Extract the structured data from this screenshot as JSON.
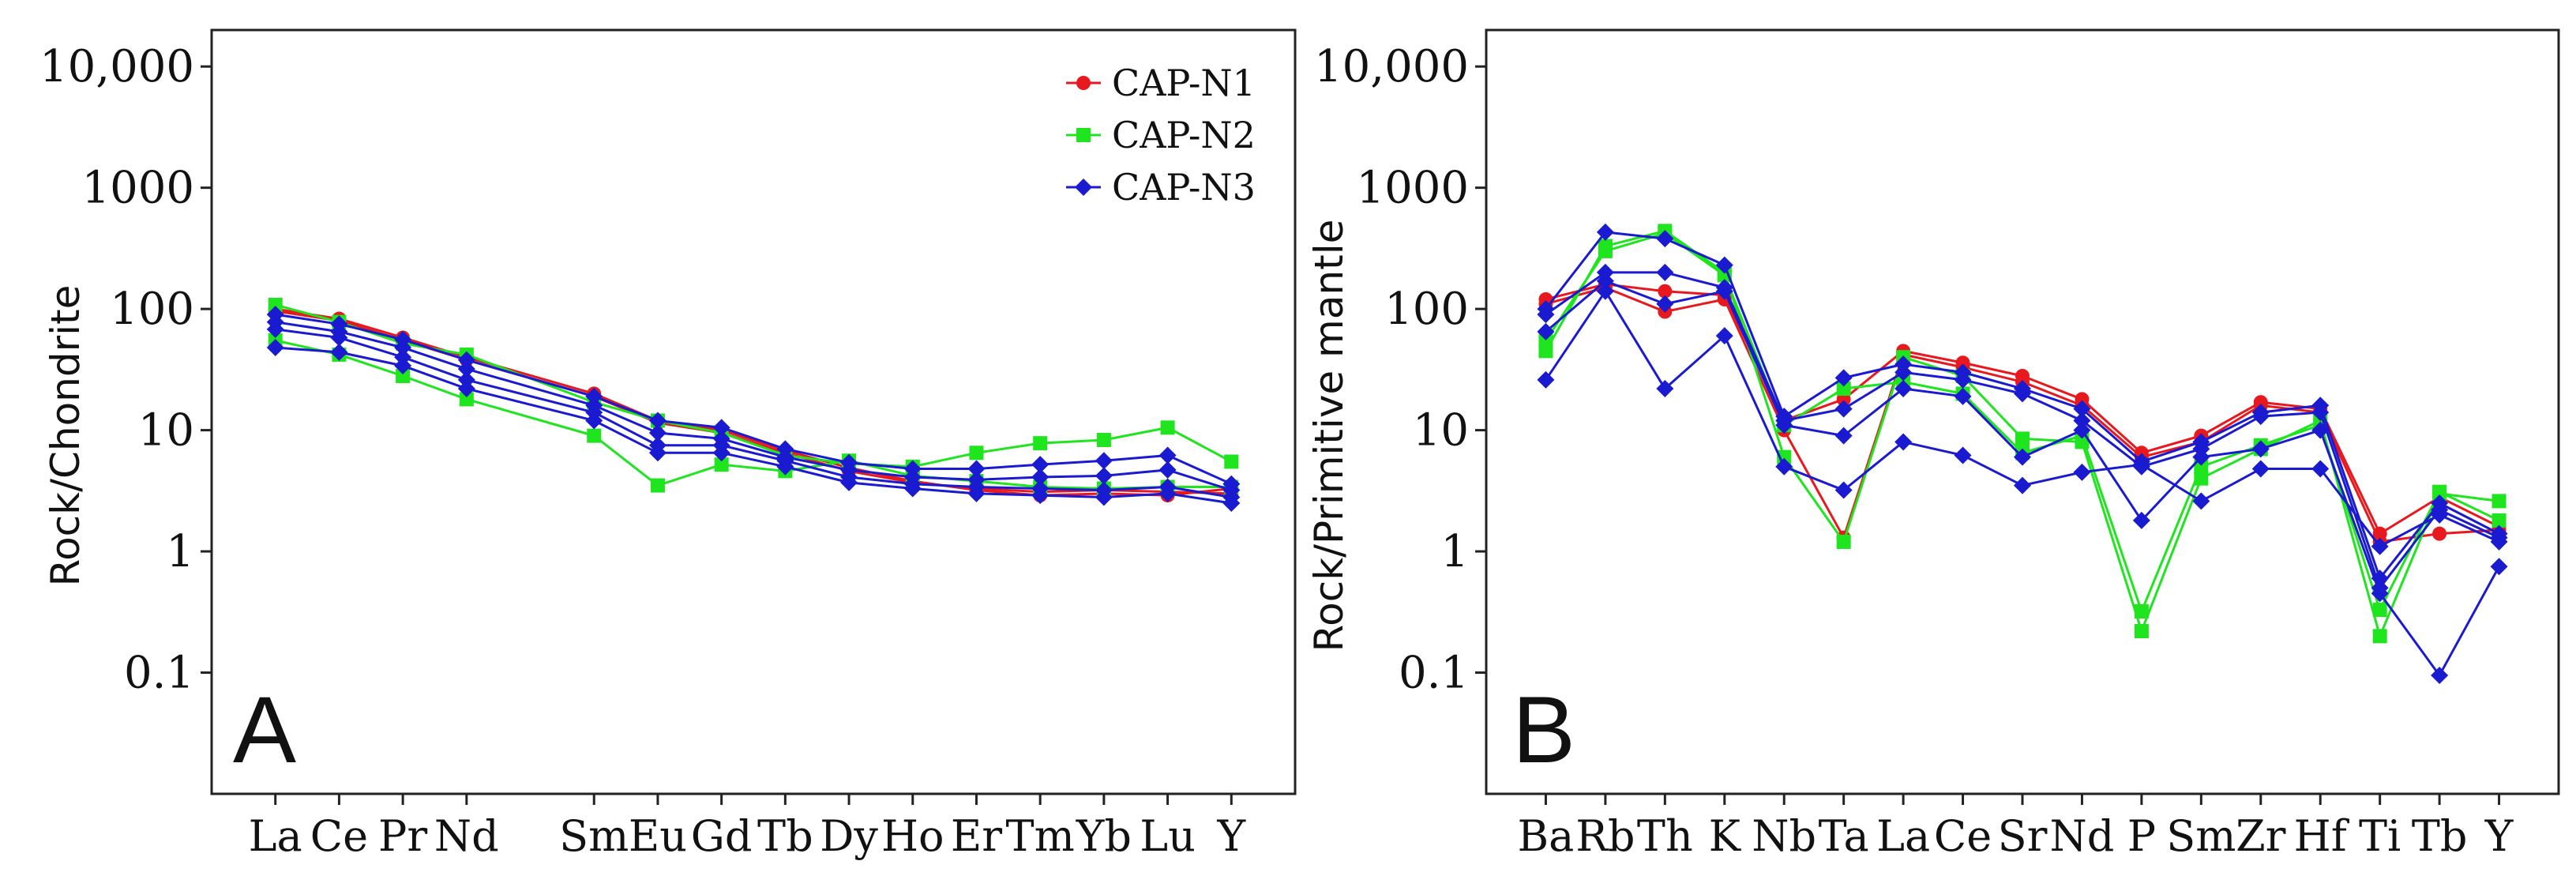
{
  "chart_data": [
    {
      "type": "line",
      "panel_label": "A",
      "ylabel": "Rock/Chondrite",
      "yscale": "log",
      "ylim": [
        0.01,
        20000
      ],
      "yticks": [
        {
          "value": 10000,
          "label": "10,000"
        },
        {
          "value": 1000,
          "label": "1000"
        },
        {
          "value": 100,
          "label": "100"
        },
        {
          "value": 10,
          "label": "10"
        },
        {
          "value": 1,
          "label": "1"
        },
        {
          "value": 0.1,
          "label": "0.1"
        }
      ],
      "categories": [
        "La",
        "Ce",
        "Pr",
        "Nd",
        "Sm",
        "Eu",
        "Gd",
        "Tb",
        "Dy",
        "Ho",
        "Er",
        "Tm",
        "Yb",
        "Lu",
        "Y"
      ],
      "category_positions": [
        1,
        2,
        3,
        4,
        6,
        7,
        8,
        9,
        10,
        11,
        12,
        13,
        14,
        15,
        16
      ],
      "x_range": [
        0,
        17
      ],
      "legend": [
        {
          "name": "CAP-N1",
          "color": "#e8191e",
          "marker": "circle"
        },
        {
          "name": "CAP-N2",
          "color": "#1ee51e",
          "marker": "square"
        },
        {
          "name": "CAP-N3",
          "color": "#1a1ad0",
          "marker": "diamond"
        }
      ],
      "series": [
        {
          "name": "CAP-N1",
          "color": "#e8191e",
          "marker": "circle",
          "values": [
            100,
            83,
            58,
            40,
            20,
            12,
            10,
            6.8,
            4.9,
            3.8,
            3.2,
            2.9,
            3.0,
            2.9,
            3.3
          ]
        },
        {
          "name": "CAP-N1",
          "color": "#e8191e",
          "marker": "circle",
          "values": [
            96,
            80,
            55,
            38,
            19,
            11.5,
            9.5,
            6.5,
            4.6,
            3.7,
            3.3,
            3.1,
            3.2,
            3.1,
            3.0
          ]
        },
        {
          "name": "CAP-N2",
          "color": "#1ee51e",
          "marker": "square",
          "values": [
            108,
            78,
            52,
            42,
            17,
            12,
            9.5,
            6.2,
            5.3,
            5.0,
            6.5,
            7.8,
            8.3,
            10.5,
            5.5
          ]
        },
        {
          "name": "CAP-N2",
          "color": "#1ee51e",
          "marker": "square",
          "values": [
            55,
            42,
            28,
            18,
            9,
            3.5,
            5.2,
            4.6,
            5.6,
            4.2,
            3.8,
            3.4,
            3.3,
            3.4,
            3.4
          ]
        },
        {
          "name": "CAP-N3",
          "color": "#1a1ad0",
          "marker": "diamond",
          "values": [
            90,
            75,
            56,
            38,
            19,
            12,
            10.5,
            7.0,
            5.4,
            4.8,
            4.8,
            5.2,
            5.6,
            6.2,
            3.6
          ]
        },
        {
          "name": "CAP-N3",
          "color": "#1a1ad0",
          "marker": "diamond",
          "values": [
            78,
            65,
            48,
            32,
            16,
            9.5,
            8.5,
            6.0,
            4.7,
            4.1,
            3.9,
            4.1,
            4.2,
            4.7,
            3.2
          ]
        },
        {
          "name": "CAP-N3",
          "color": "#1a1ad0",
          "marker": "diamond",
          "values": [
            68,
            58,
            40,
            26,
            14,
            7.5,
            7.5,
            5.6,
            4.1,
            3.6,
            3.4,
            3.3,
            3.2,
            3.4,
            2.8
          ]
        },
        {
          "name": "CAP-N3",
          "color": "#1a1ad0",
          "marker": "diamond",
          "values": [
            48,
            44,
            34,
            22,
            12,
            6.5,
            6.5,
            5.0,
            3.7,
            3.3,
            3.0,
            2.9,
            2.8,
            3.0,
            2.5
          ]
        }
      ]
    },
    {
      "type": "line",
      "panel_label": "B",
      "ylabel": "Rock/Primitive mantle",
      "yscale": "log",
      "ylim": [
        0.01,
        20000
      ],
      "yticks": [
        {
          "value": 10000,
          "label": "10,000"
        },
        {
          "value": 1000,
          "label": "1000"
        },
        {
          "value": 100,
          "label": "100"
        },
        {
          "value": 10,
          "label": "10"
        },
        {
          "value": 1,
          "label": "1"
        },
        {
          "value": 0.1,
          "label": "0.1"
        }
      ],
      "categories": [
        "Ba",
        "Rb",
        "Th",
        "K",
        "Nb",
        "Ta",
        "La",
        "Ce",
        "Sr",
        "Nd",
        "P",
        "Sm",
        "Zr",
        "Hf",
        "Ti",
        "Tb",
        "Y"
      ],
      "category_positions": [
        1,
        2,
        3,
        4,
        5,
        6,
        7,
        8,
        9,
        10,
        11,
        12,
        13,
        14,
        15,
        16,
        17
      ],
      "x_range": [
        0,
        18
      ],
      "series": [
        {
          "name": "CAP-N1",
          "color": "#e8191e",
          "marker": "circle",
          "values": [
            120,
            160,
            140,
            130,
            12,
            18,
            45,
            36,
            28,
            18,
            6.5,
            9,
            17,
            15,
            1.4,
            2.8,
            1.6
          ]
        },
        {
          "name": "CAP-N1",
          "color": "#e8191e",
          "marker": "circle",
          "values": [
            110,
            150,
            95,
            120,
            10,
            1.3,
            42,
            33,
            25,
            16,
            6,
            8,
            16,
            14,
            1.2,
            1.4,
            1.5
          ]
        },
        {
          "name": "CAP-N2",
          "color": "#1ee51e",
          "marker": "square",
          "values": [
            45,
            330,
            440,
            200,
            6,
            1.2,
            40,
            28,
            8.5,
            8,
            0.22,
            4,
            7,
            12,
            0.2,
            3.0,
            2.6
          ]
        },
        {
          "name": "CAP-N2",
          "color": "#1ee51e",
          "marker": "square",
          "values": [
            55,
            300,
            420,
            190,
            11,
            22,
            25,
            20,
            6.5,
            9,
            0.32,
            5,
            7.5,
            11,
            0.33,
            3.1,
            1.8
          ]
        },
        {
          "name": "CAP-N3",
          "color": "#1a1ad0",
          "marker": "diamond",
          "values": [
            100,
            430,
            380,
            230,
            13,
            27,
            35,
            30,
            22,
            15,
            5.5,
            8,
            14,
            16,
            0.6,
            2.5,
            1.4
          ]
        },
        {
          "name": "CAP-N3",
          "color": "#1a1ad0",
          "marker": "diamond",
          "values": [
            90,
            200,
            200,
            150,
            12,
            15,
            30,
            26,
            20,
            12,
            5,
            7,
            13,
            14,
            0.5,
            2.2,
            1.3
          ]
        },
        {
          "name": "CAP-N3",
          "color": "#1a1ad0",
          "marker": "diamond",
          "values": [
            65,
            170,
            110,
            140,
            11,
            9,
            22,
            19,
            6,
            10,
            1.8,
            6,
            7,
            10,
            0.45,
            0.095,
            0.75
          ]
        },
        {
          "name": "CAP-N3",
          "color": "#1a1ad0",
          "marker": "diamond",
          "values": [
            26,
            140,
            22,
            60,
            5,
            3.2,
            8,
            6.2,
            3.5,
            4.5,
            5.2,
            2.6,
            4.8,
            4.8,
            1.1,
            2.0,
            1.2
          ]
        }
      ]
    }
  ]
}
